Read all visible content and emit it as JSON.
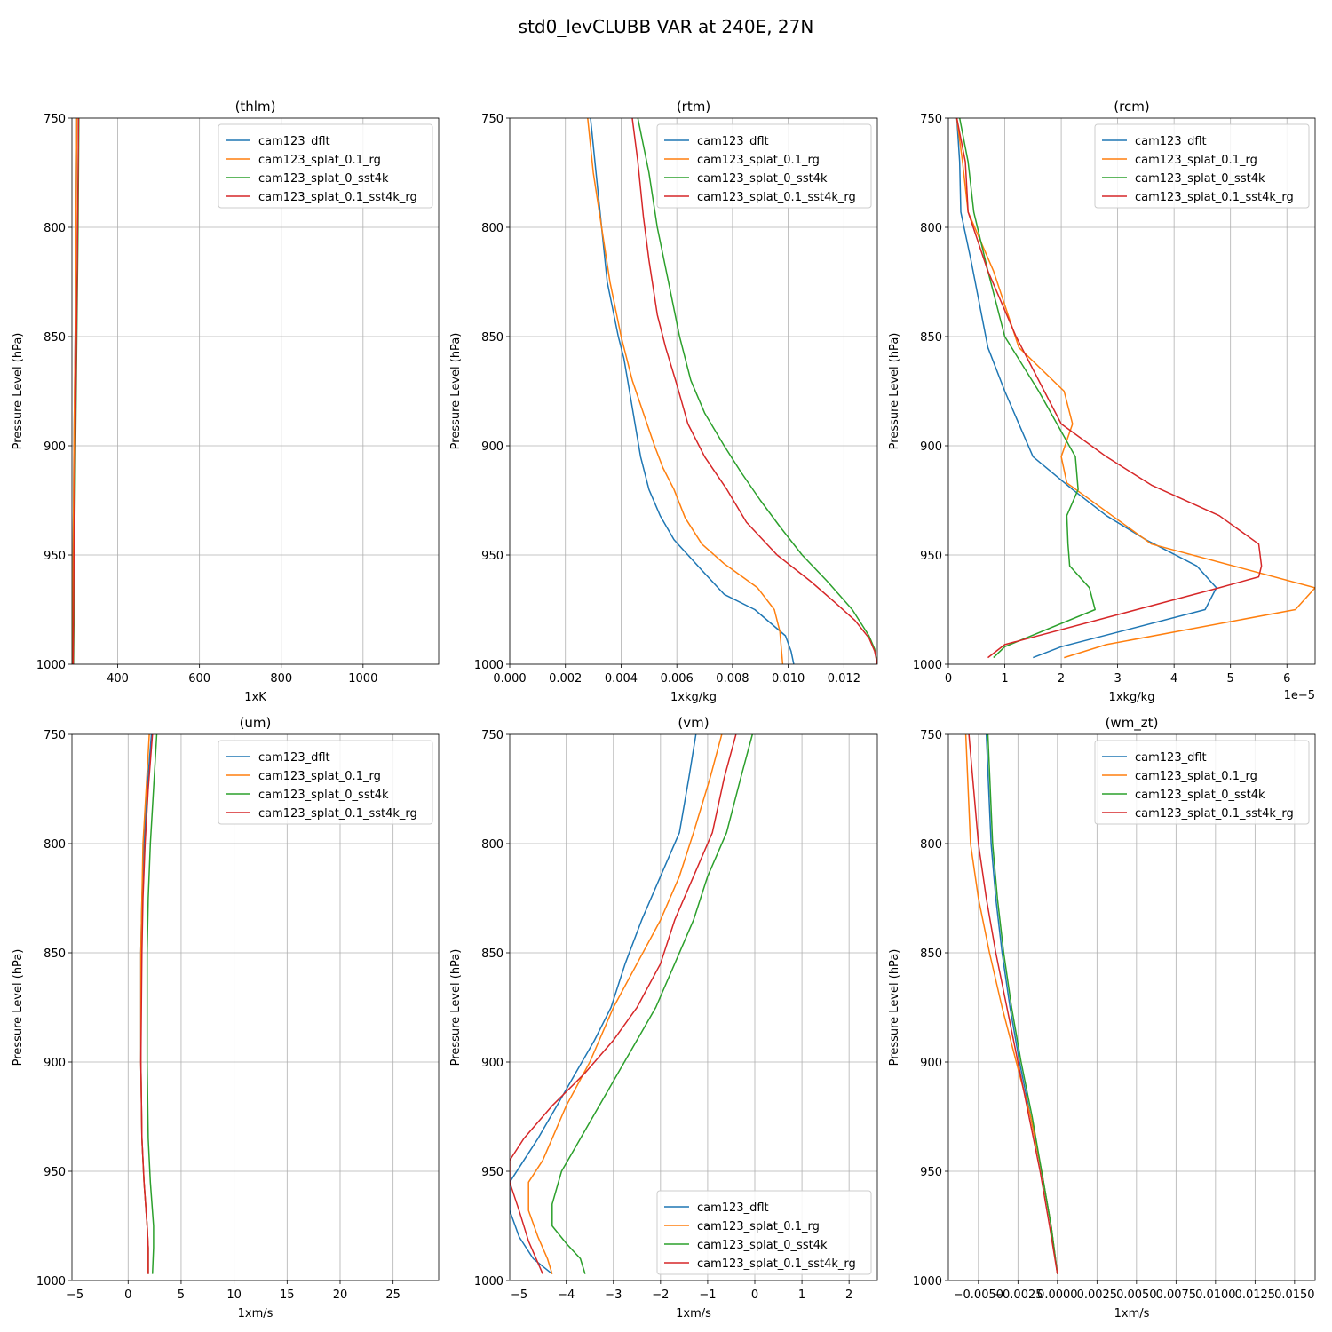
{
  "figure": {
    "title": "std0_levCLUBB VAR at 240E, 27N"
  },
  "chart_data": [
    {
      "type": "line",
      "title": "(thlm)",
      "xlabel": "1xK",
      "ylabel": "Pressure Level (hPa)",
      "xlim": [
        288,
        1185
      ],
      "ylim": [
        1000,
        750
      ],
      "xticks": [
        400,
        600,
        800,
        1000
      ],
      "xtick_labels": [
        "400",
        "600",
        "800",
        "1000"
      ],
      "yticks": [
        750,
        800,
        850,
        900,
        950,
        1000
      ],
      "ytick_labels": [
        "750",
        "800",
        "850",
        "900",
        "950",
        "1000"
      ],
      "legend": "upper right",
      "series": [
        {
          "name": "cam123_dflt",
          "color": "#1f77b4",
          "x": [
            300,
            298,
            296,
            293,
            291,
            290,
            289
          ],
          "y": [
            750,
            800,
            850,
            900,
            950,
            980,
            1000
          ]
        },
        {
          "name": "cam123_splat_0.1_rg",
          "color": "#ff7f0e",
          "x": [
            300,
            298,
            296,
            293,
            291,
            290,
            289
          ],
          "y": [
            750,
            800,
            850,
            900,
            950,
            980,
            1000
          ]
        },
        {
          "name": "cam123_splat_0_sst4k",
          "color": "#2ca02c",
          "x": [
            305,
            303,
            300,
            297,
            294,
            293,
            292
          ],
          "y": [
            750,
            800,
            850,
            900,
            950,
            980,
            1000
          ]
        },
        {
          "name": "cam123_splat_0.1_sst4k_rg",
          "color": "#d62728",
          "x": [
            304,
            302,
            299,
            296,
            293,
            292,
            291
          ],
          "y": [
            750,
            800,
            850,
            900,
            950,
            980,
            1000
          ]
        }
      ]
    },
    {
      "type": "line",
      "title": "(rtm)",
      "xlabel": "1xkg/kg",
      "ylabel": "Pressure Level (hPa)",
      "xlim": [
        0,
        0.0132
      ],
      "ylim": [
        1000,
        750
      ],
      "xticks": [
        0,
        0.002,
        0.004,
        0.006,
        0.008,
        0.01,
        0.012
      ],
      "xtick_labels": [
        "0.000",
        "0.002",
        "0.004",
        "0.006",
        "0.008",
        "0.010",
        "0.012"
      ],
      "yticks": [
        750,
        800,
        850,
        900,
        950,
        1000
      ],
      "ytick_labels": [
        "750",
        "800",
        "850",
        "900",
        "950",
        "1000"
      ],
      "legend": "upper right",
      "series": [
        {
          "name": "cam123_dflt",
          "color": "#1f77b4",
          "x": [
            0.0029,
            0.0031,
            0.0033,
            0.0035,
            0.0039,
            0.0041,
            0.0043,
            0.0045,
            0.0047,
            0.005,
            0.0054,
            0.0059,
            0.0064,
            0.0069,
            0.0077,
            0.0088,
            0.0099,
            0.0101,
            0.0102
          ],
          "y": [
            750,
            775,
            800,
            825,
            850,
            860,
            875,
            890,
            905,
            920,
            932,
            943,
            950,
            957,
            968,
            975,
            987,
            994,
            1000
          ]
        },
        {
          "name": "cam123_splat_0.1_rg",
          "color": "#ff7f0e",
          "x": [
            0.0028,
            0.003,
            0.0033,
            0.0036,
            0.004,
            0.0044,
            0.0048,
            0.0052,
            0.0055,
            0.0059,
            0.0063,
            0.0069,
            0.0077,
            0.0089,
            0.0095,
            0.0097,
            0.0098
          ],
          "y": [
            750,
            775,
            800,
            825,
            850,
            870,
            885,
            900,
            910,
            920,
            933,
            945,
            954,
            965,
            975,
            985,
            1000
          ]
        },
        {
          "name": "cam123_splat_0_sst4k",
          "color": "#2ca02c",
          "x": [
            0.0046,
            0.005,
            0.0053,
            0.0057,
            0.0061,
            0.0065,
            0.007,
            0.0077,
            0.0083,
            0.009,
            0.0097,
            0.0105,
            0.0114,
            0.0123,
            0.0129,
            0.0131,
            0.0132
          ],
          "y": [
            750,
            775,
            800,
            825,
            850,
            870,
            885,
            900,
            912,
            925,
            937,
            950,
            962,
            975,
            987,
            993,
            1000
          ]
        },
        {
          "name": "cam123_splat_0.1_sst4k_rg",
          "color": "#d62728",
          "x": [
            0.0044,
            0.0046,
            0.0048,
            0.005,
            0.0053,
            0.0056,
            0.006,
            0.0064,
            0.007,
            0.0078,
            0.0085,
            0.0096,
            0.0108,
            0.0117,
            0.0124,
            0.0129,
            0.0131,
            0.0132
          ],
          "y": [
            750,
            770,
            795,
            815,
            840,
            855,
            872,
            890,
            905,
            920,
            935,
            950,
            962,
            972,
            980,
            988,
            994,
            1000
          ]
        }
      ]
    },
    {
      "type": "line",
      "title": "(rcm)",
      "xlabel": "1xkg/kg",
      "ylabel": "Pressure Level (hPa)",
      "xlim": [
        0,
        6.5
      ],
      "ylim": [
        1000,
        750
      ],
      "x_multiplier": "1e−5",
      "xticks": [
        0,
        1,
        2,
        3,
        4,
        5,
        6
      ],
      "xtick_labels": [
        "0",
        "1",
        "2",
        "3",
        "4",
        "5",
        "6"
      ],
      "yticks": [
        750,
        800,
        850,
        900,
        950,
        1000
      ],
      "ytick_labels": [
        "750",
        "800",
        "850",
        "900",
        "950",
        "1000"
      ],
      "legend": "upper right",
      "series": [
        {
          "name": "cam123_dflt",
          "color": "#1f77b4",
          "x": [
            0.15,
            0.2,
            0.22,
            0.4,
            0.7,
            1.0,
            1.25,
            1.5,
            2.2,
            2.8,
            3.5,
            4.4,
            4.75,
            4.55,
            2.0,
            1.5
          ],
          "y": [
            750,
            770,
            793,
            815,
            855,
            875,
            890,
            905,
            920,
            932,
            943,
            955,
            965,
            975,
            992,
            997
          ]
        },
        {
          "name": "cam123_splat_0.1_rg",
          "color": "#ff7f0e",
          "x": [
            0.15,
            0.25,
            0.35,
            0.8,
            1.25,
            2.05,
            2.2,
            2.0,
            2.1,
            2.9,
            3.6,
            6.5,
            6.15,
            2.8,
            2.05
          ],
          "y": [
            750,
            770,
            793,
            820,
            855,
            875,
            890,
            905,
            917,
            932,
            945,
            965,
            975,
            991,
            997
          ]
        },
        {
          "name": "cam123_splat_0_sst4k",
          "color": "#2ca02c",
          "x": [
            0.2,
            0.35,
            0.45,
            0.7,
            1.0,
            1.6,
            2.25,
            2.3,
            2.1,
            2.12,
            2.15,
            2.5,
            2.6,
            1.0,
            0.8
          ],
          "y": [
            750,
            770,
            793,
            820,
            850,
            875,
            905,
            920,
            932,
            945,
            955,
            965,
            975,
            992,
            997
          ]
        },
        {
          "name": "cam123_splat_0.1_sst4k_rg",
          "color": "#d62728",
          "x": [
            0.15,
            0.3,
            0.35,
            0.7,
            1.2,
            1.7,
            2.0,
            2.8,
            3.6,
            4.8,
            5.5,
            5.55,
            5.5,
            4.8,
            1.0,
            0.7
          ],
          "y": [
            750,
            770,
            793,
            820,
            850,
            875,
            890,
            905,
            918,
            932,
            945,
            955,
            960,
            965,
            991,
            997
          ]
        }
      ]
    },
    {
      "type": "line",
      "title": "(um)",
      "xlabel": "1xm/s",
      "ylabel": "Pressure Level (hPa)",
      "xlim": [
        -5.3,
        29.3
      ],
      "ylim": [
        1000,
        750
      ],
      "xticks": [
        -5,
        0,
        5,
        10,
        15,
        20,
        25
      ],
      "xtick_labels": [
        "−5",
        "0",
        "5",
        "10",
        "15",
        "20",
        "25"
      ],
      "yticks": [
        750,
        800,
        850,
        900,
        950,
        1000
      ],
      "ytick_labels": [
        "750",
        "800",
        "850",
        "900",
        "950",
        "1000"
      ],
      "legend": "upper right",
      "series": [
        {
          "name": "cam123_dflt",
          "color": "#1f77b4",
          "x": [
            2.2,
            1.8,
            1.5,
            1.3,
            1.2,
            1.2,
            1.3,
            1.5,
            1.8,
            1.9,
            1.9
          ],
          "y": [
            750,
            775,
            800,
            825,
            850,
            900,
            935,
            955,
            975,
            985,
            997
          ]
        },
        {
          "name": "cam123_splat_0.1_rg",
          "color": "#ff7f0e",
          "x": [
            2.0,
            1.7,
            1.4,
            1.3,
            1.2,
            1.2,
            1.3,
            1.5,
            1.8,
            1.9,
            1.9
          ],
          "y": [
            750,
            775,
            800,
            825,
            850,
            900,
            935,
            955,
            975,
            985,
            997
          ]
        },
        {
          "name": "cam123_splat_0_sst4k",
          "color": "#2ca02c",
          "x": [
            2.7,
            2.4,
            2.1,
            1.9,
            1.8,
            1.8,
            1.9,
            2.1,
            2.4,
            2.4,
            2.3
          ],
          "y": [
            750,
            775,
            800,
            825,
            850,
            900,
            935,
            955,
            975,
            985,
            997
          ]
        },
        {
          "name": "cam123_splat_0.1_sst4k_rg",
          "color": "#d62728",
          "x": [
            2.3,
            1.9,
            1.6,
            1.4,
            1.3,
            1.2,
            1.3,
            1.5,
            1.8,
            1.9,
            1.9
          ],
          "y": [
            750,
            775,
            800,
            825,
            850,
            900,
            935,
            955,
            975,
            985,
            997
          ]
        }
      ]
    },
    {
      "type": "line",
      "title": "(vm)",
      "xlabel": "1xm/s",
      "ylabel": "Pressure Level (hPa)",
      "xlim": [
        -5.2,
        2.6
      ],
      "ylim": [
        1000,
        750
      ],
      "xticks": [
        -5,
        -4,
        -3,
        -2,
        -1,
        0,
        1,
        2
      ],
      "xtick_labels": [
        "−5",
        "−4",
        "−3",
        "−2",
        "−1",
        "0",
        "1",
        "2"
      ],
      "yticks": [
        750,
        800,
        850,
        900,
        950,
        1000
      ],
      "ytick_labels": [
        "750",
        "800",
        "850",
        "900",
        "950",
        "1000"
      ],
      "legend": "lower right",
      "series": [
        {
          "name": "cam123_dflt",
          "color": "#1f77b4",
          "x": [
            -1.25,
            -1.4,
            -1.6,
            -2.0,
            -2.4,
            -2.75,
            -3.05,
            -3.4,
            -3.8,
            -4.2,
            -4.6,
            -4.9,
            -5.2,
            -5.2,
            -5.0,
            -4.7,
            -4.3
          ],
          "y": [
            750,
            770,
            795,
            815,
            835,
            855,
            875,
            890,
            905,
            920,
            935,
            945,
            955,
            968,
            980,
            990,
            997
          ]
        },
        {
          "name": "cam123_splat_0.1_rg",
          "color": "#ff7f0e",
          "x": [
            -0.7,
            -0.95,
            -1.3,
            -1.6,
            -2.0,
            -2.5,
            -3.0,
            -3.5,
            -4.0,
            -4.5,
            -4.8,
            -4.8,
            -4.6,
            -4.4,
            -4.3
          ],
          "y": [
            750,
            770,
            795,
            815,
            835,
            855,
            875,
            900,
            920,
            945,
            955,
            968,
            980,
            990,
            997
          ]
        },
        {
          "name": "cam123_splat_0.1_sst4k_rg",
          "color": "#d62728",
          "x": [
            -0.4,
            -0.65,
            -0.9,
            -1.3,
            -1.7,
            -2.0,
            -2.5,
            -3.0,
            -3.6,
            -4.3,
            -4.9,
            -5.2,
            -5.2,
            -5.0,
            -4.8,
            -4.5
          ],
          "y": [
            750,
            770,
            795,
            815,
            835,
            855,
            875,
            890,
            905,
            920,
            935,
            945,
            955,
            968,
            982,
            997
          ]
        },
        {
          "name": "cam123_splat_0_sst4k",
          "color": "#2ca02c",
          "x": [
            -0.05,
            -0.3,
            -0.6,
            -1.0,
            -1.3,
            -1.7,
            -2.1,
            -2.5,
            -2.9,
            -3.3,
            -3.7,
            -4.1,
            -4.3,
            -4.3,
            -4.0,
            -3.7,
            -3.6
          ],
          "y": [
            750,
            770,
            795,
            815,
            835,
            855,
            875,
            890,
            905,
            920,
            935,
            950,
            965,
            975,
            983,
            990,
            997
          ]
        }
      ]
    },
    {
      "type": "line",
      "title": "(wm_zt)",
      "xlabel": "1xm/s",
      "ylabel": "Pressure Level (hPa)",
      "xlim": [
        -0.0069,
        0.0163
      ],
      "ylim": [
        1000,
        750
      ],
      "xticks": [
        -0.005,
        -0.0025,
        0,
        0.0025,
        0.005,
        0.0075,
        0.01,
        0.0125,
        0.015
      ],
      "xtick_labels": [
        "−0.0050",
        "−0.0025",
        "0.0000",
        "0.0025",
        "0.0050",
        "0.0075",
        "0.0100",
        "0.0125",
        "0.0150"
      ],
      "yticks": [
        750,
        800,
        850,
        900,
        950,
        1000
      ],
      "ytick_labels": [
        "750",
        "800",
        "850",
        "900",
        "950",
        "1000"
      ],
      "legend": "upper right",
      "series": [
        {
          "name": "cam123_dflt",
          "color": "#1f77b4",
          "x": [
            -0.0045,
            -0.0042,
            -0.0039,
            -0.0035,
            -0.003,
            -0.0024,
            -0.0017,
            -0.001,
            -0.0004,
            0.0
          ],
          "y": [
            750,
            800,
            825,
            850,
            875,
            900,
            925,
            950,
            975,
            997
          ]
        },
        {
          "name": "cam123_splat_0.1_rg",
          "color": "#ff7f0e",
          "x": [
            -0.0058,
            -0.0055,
            -0.005,
            -0.0043,
            -0.0035,
            -0.0026,
            -0.0017,
            -0.001,
            -0.0004,
            0.0
          ],
          "y": [
            750,
            800,
            825,
            850,
            875,
            900,
            925,
            950,
            975,
            997
          ]
        },
        {
          "name": "cam123_splat_0_sst4k",
          "color": "#2ca02c",
          "x": [
            -0.0044,
            -0.0041,
            -0.0038,
            -0.0034,
            -0.0029,
            -0.0023,
            -0.0016,
            -0.001,
            -0.0004,
            0.0
          ],
          "y": [
            750,
            800,
            825,
            850,
            875,
            900,
            925,
            950,
            975,
            997
          ]
        },
        {
          "name": "cam123_splat_0.1_sst4k_rg",
          "color": "#d62728",
          "x": [
            -0.0056,
            -0.005,
            -0.0045,
            -0.0039,
            -0.0032,
            -0.0025,
            -0.0018,
            -0.0011,
            -0.0005,
            0.0
          ],
          "y": [
            750,
            800,
            825,
            850,
            875,
            900,
            925,
            950,
            975,
            997
          ]
        }
      ]
    }
  ]
}
